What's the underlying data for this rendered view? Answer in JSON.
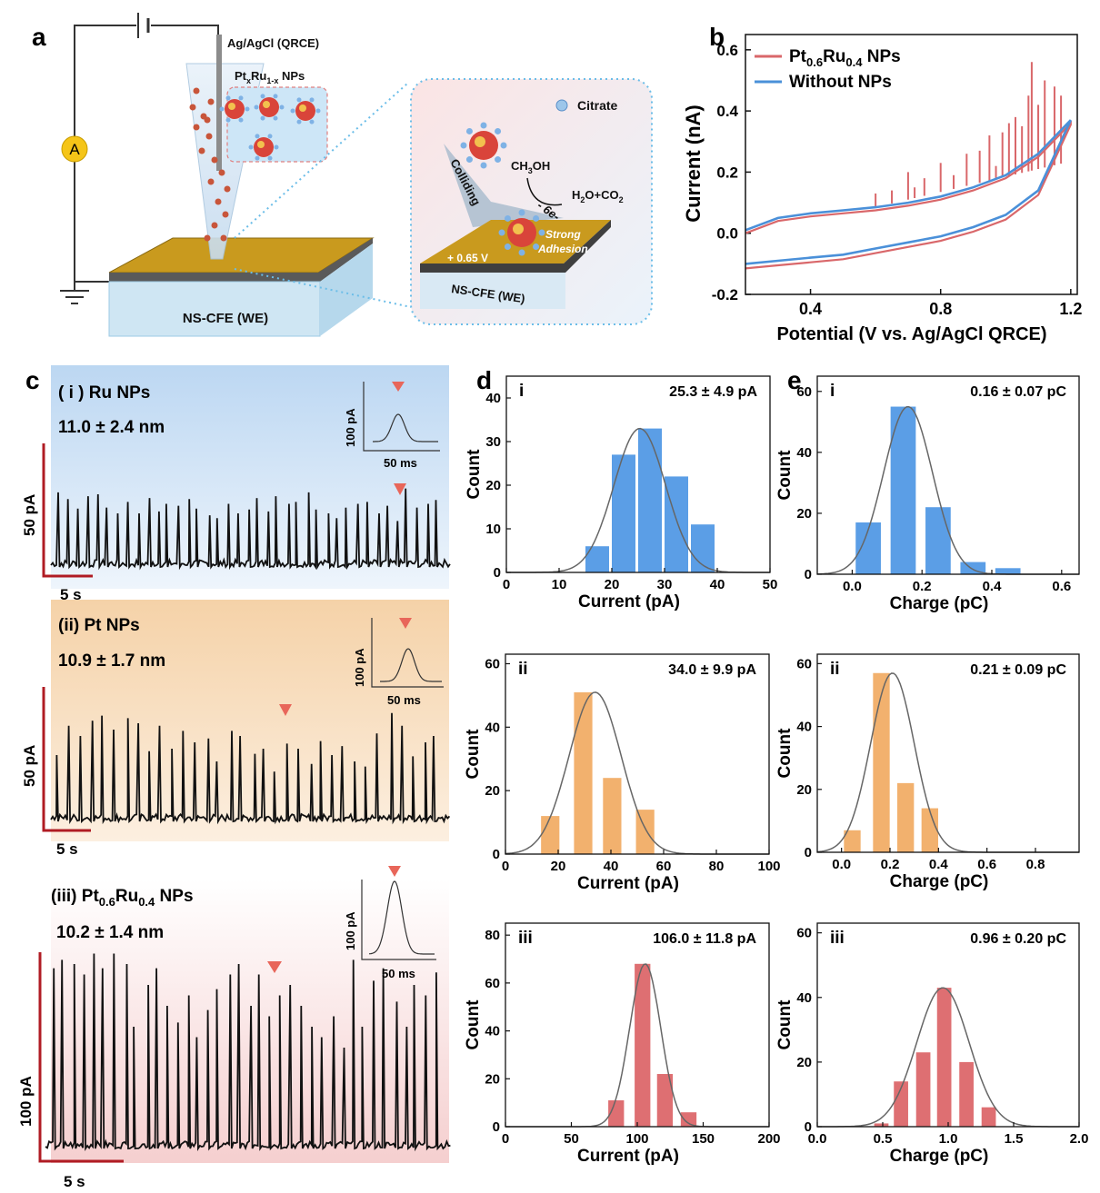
{
  "panel_letters": {
    "a": "a",
    "b": "b",
    "c": "c",
    "d": "d",
    "e": "e"
  },
  "schematic": {
    "ref_electrode": "Ag/AgCl (QRCE)",
    "np_label": "PtxRu1-x NPs",
    "ammeter": "A",
    "we_label": "NS-CFE (WE)",
    "we_label_inset": "NS-CFE (WE)",
    "citrate": "Citrate",
    "colliding": "Colliding",
    "methanol": "CH3OH",
    "electrons": "- 6e-",
    "products": "H2O+CO2",
    "strong": "Strong",
    "adhesion": "Adhesion",
    "potential": "+ 0.65 V"
  },
  "colors": {
    "ptru": "#d9676a",
    "without": "#4a90d9",
    "blue_bar": "#5b9ee6",
    "orange_bar": "#f2b16e",
    "red_bar": "#de6f72",
    "fit": "#666666",
    "marker": "#e8665a",
    "scale": "#b01c24",
    "gold": "#d4a017",
    "blue_bg": "#cfe2f5",
    "orange_bg": "#f8dcbc",
    "pink_bg": "#f7d5d5"
  },
  "traces": [
    {
      "title_prefix": "( i ) Ru NPs",
      "size": "11.0 ± 2.4 nm",
      "scale_y": "50 pA",
      "scale_x": "5 s",
      "inset_y": "100 pA",
      "inset_x": "50 ms",
      "spikes": [
        82,
        75,
        65,
        78,
        80,
        66,
        60,
        72,
        60,
        76,
        62,
        70,
        68,
        75,
        65,
        58,
        55,
        70,
        60,
        64,
        76,
        62,
        78,
        70,
        72,
        82,
        64,
        60,
        55,
        66,
        70,
        72,
        60,
        68,
        52,
        86,
        66,
        70,
        74
      ]
    },
    {
      "title_prefix": "(ii) Pt NPs",
      "size": "10.9 ± 1.7 nm",
      "scale_y": "50 pA",
      "scale_x": "5 s",
      "inset_y": "100 pA",
      "inset_x": "50 ms",
      "spikes": [
        55,
        78,
        70,
        82,
        86,
        75,
        84,
        80,
        58,
        78,
        60,
        74,
        65,
        68,
        50,
        74,
        70,
        56,
        60,
        42,
        64,
        60,
        48,
        66,
        55,
        62,
        50,
        46,
        72,
        88,
        78,
        54,
        65,
        70
      ]
    },
    {
      "title_prefix": "(iii) ",
      "title_formula": "Pt0.6Ru0.4 NPs",
      "size": "10.2 ± 1.4 nm",
      "scale_y": "100 pA",
      "scale_x": "5 s",
      "inset_y": "100 pA",
      "inset_x": "50 ms",
      "spikes": [
        88,
        92,
        90,
        85,
        95,
        88,
        95,
        90,
        60,
        80,
        88,
        70,
        62,
        75,
        55,
        68,
        78,
        85,
        90,
        70,
        85,
        65,
        75,
        80,
        70,
        60,
        55,
        65,
        50,
        92,
        60,
        82,
        88,
        72,
        60,
        80,
        75,
        86
      ]
    }
  ],
  "chart_data": [
    {
      "type": "line",
      "panel": "b",
      "xlabel": "Potential (V vs. Ag/AgCl QRCE)",
      "ylabel": "Current (nA)",
      "xlim": [
        0.2,
        1.22
      ],
      "ylim": [
        -0.2,
        0.65
      ],
      "xticks": [
        "0.4",
        "0.8",
        "1.2"
      ],
      "yticks": [
        "-0.2",
        "0.0",
        "0.2",
        "0.4",
        "0.6"
      ],
      "legend": [
        "Pt0.6Ru0.4 NPs",
        "Without NPs"
      ],
      "series": [
        {
          "name": "Without NPs",
          "x_upper": [
            0.2,
            0.3,
            0.4,
            0.5,
            0.6,
            0.7,
            0.8,
            0.9,
            1.0,
            1.1,
            1.2
          ],
          "y_upper": [
            0.01,
            0.05,
            0.065,
            0.075,
            0.085,
            0.1,
            0.12,
            0.15,
            0.19,
            0.26,
            0.37
          ],
          "x_lower": [
            1.2,
            1.1,
            1.0,
            0.9,
            0.8,
            0.7,
            0.6,
            0.5,
            0.4,
            0.3,
            0.2
          ],
          "y_lower": [
            0.37,
            0.14,
            0.06,
            0.02,
            -0.01,
            -0.03,
            -0.05,
            -0.07,
            -0.08,
            -0.09,
            -0.1
          ]
        },
        {
          "name": "Pt0.6Ru0.4 NPs",
          "spikes_x": [
            0.6,
            0.65,
            0.7,
            0.72,
            0.75,
            0.8,
            0.84,
            0.88,
            0.92,
            0.95,
            0.97,
            0.99,
            1.01,
            1.03,
            1.05,
            1.07,
            1.08,
            1.1,
            1.12,
            1.15,
            1.17
          ],
          "spikes_y": [
            0.13,
            0.14,
            0.2,
            0.15,
            0.18,
            0.23,
            0.19,
            0.26,
            0.27,
            0.32,
            0.22,
            0.33,
            0.36,
            0.38,
            0.35,
            0.45,
            0.56,
            0.42,
            0.5,
            0.48,
            0.45
          ]
        }
      ]
    },
    {
      "type": "bar",
      "panel": "d-i",
      "roman": "i",
      "stat": "25.3 ± 4.9 pA",
      "xlabel": "Current (pA)",
      "ylabel": "Count",
      "xlim": [
        0,
        50
      ],
      "ylim": [
        0,
        45
      ],
      "xticks": [
        "0",
        "10",
        "20",
        "30",
        "40",
        "50"
      ],
      "yticks": [
        "0",
        "10",
        "20",
        "30",
        "40"
      ],
      "bin_centers": [
        17.5,
        22.5,
        27.5,
        32.5,
        37.5
      ],
      "bin_width": 5,
      "counts": [
        6,
        27,
        33,
        22,
        11
      ],
      "fit": {
        "mu": 25.3,
        "sigma": 4.9,
        "amp": 33
      },
      "color": "blue"
    },
    {
      "type": "bar",
      "panel": "e-i",
      "roman": "i",
      "stat": "0.16 ± 0.07 pC",
      "xlabel": "Charge (pC)",
      "ylabel": "Count",
      "xlim": [
        -0.1,
        0.65
      ],
      "ylim": [
        0,
        65
      ],
      "xticks": [
        "0.0",
        "0.2",
        "0.4",
        "0.6"
      ],
      "yticks": [
        "0",
        "20",
        "40",
        "60"
      ],
      "bin_centers": [
        0.05,
        0.15,
        0.25,
        0.35,
        0.45
      ],
      "bin_width": 0.08,
      "counts": [
        17,
        55,
        22,
        4,
        2
      ],
      "fit": {
        "mu": 0.16,
        "sigma": 0.07,
        "amp": 55
      },
      "color": "blue"
    },
    {
      "type": "bar",
      "panel": "d-ii",
      "roman": "ii",
      "stat": "34.0 ± 9.9 pA",
      "xlabel": "Current (pA)",
      "ylabel": "Count",
      "xlim": [
        0,
        100
      ],
      "ylim": [
        0,
        63
      ],
      "xticks": [
        "0",
        "20",
        "40",
        "60",
        "80",
        "100"
      ],
      "yticks": [
        "0",
        "20",
        "40",
        "60"
      ],
      "bin_centers": [
        17.5,
        30,
        41,
        53.5
      ],
      "bin_width": 8,
      "counts": [
        12,
        51,
        24,
        14
      ],
      "fit": {
        "mu": 34.0,
        "sigma": 9.9,
        "amp": 51
      },
      "color": "orange"
    },
    {
      "type": "bar",
      "panel": "e-ii",
      "roman": "ii",
      "stat": "0.21 ± 0.09 pC",
      "xlabel": "Charge (pC)",
      "ylabel": "Count",
      "xlim": [
        -0.1,
        0.98
      ],
      "ylim": [
        0,
        63
      ],
      "xticks": [
        "0.0",
        "0.2",
        "0.4",
        "0.6",
        "0.8"
      ],
      "yticks": [
        "0",
        "20",
        "40",
        "60"
      ],
      "bin_centers": [
        0.05,
        0.17,
        0.27,
        0.37
      ],
      "bin_width": 0.08,
      "counts": [
        7,
        57,
        22,
        14
      ],
      "fit": {
        "mu": 0.21,
        "sigma": 0.09,
        "amp": 57
      },
      "color": "orange"
    },
    {
      "type": "bar",
      "panel": "d-iii",
      "roman": "iii",
      "stat": "106.0 ± 11.8 pA",
      "xlabel": "Current (pA)",
      "ylabel": "Count",
      "xlim": [
        0,
        200
      ],
      "ylim": [
        0,
        85
      ],
      "xticks": [
        "0",
        "50",
        "100",
        "150",
        "200"
      ],
      "yticks": [
        "0",
        "20",
        "40",
        "60",
        "80"
      ],
      "bin_centers": [
        85,
        105,
        122,
        140
      ],
      "bin_width": 14,
      "counts": [
        11,
        68,
        22,
        6
      ],
      "fit": {
        "mu": 106.0,
        "sigma": 11.8,
        "amp": 68
      },
      "color": "red"
    },
    {
      "type": "bar",
      "panel": "e-iii",
      "roman": "iii",
      "stat": "0.96 ± 0.20 pC",
      "xlabel": "Charge (pC)",
      "ylabel": "Count",
      "xlim": [
        0,
        2.0
      ],
      "ylim": [
        0,
        63
      ],
      "xticks": [
        "0.0",
        "0.5",
        "1.0",
        "1.5",
        "2.0"
      ],
      "yticks": [
        "0",
        "20",
        "40",
        "60"
      ],
      "bin_centers": [
        0.5,
        0.65,
        0.82,
        0.98,
        1.15,
        1.32
      ],
      "bin_width": 0.13,
      "counts": [
        1,
        14,
        23,
        43,
        20,
        6
      ],
      "fit": {
        "mu": 0.96,
        "sigma": 0.2,
        "amp": 43
      },
      "color": "red"
    }
  ]
}
